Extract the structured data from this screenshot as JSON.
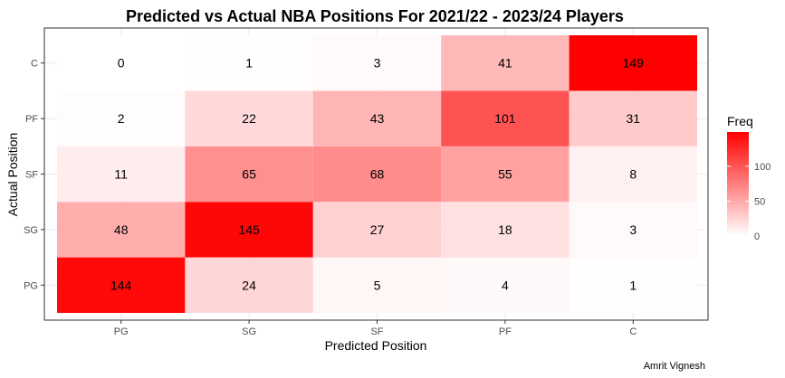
{
  "chart_data": {
    "type": "heatmap",
    "title": "Predicted vs Actual NBA Positions For 2021/22 - 2023/24 Players",
    "xlabel": "Predicted Position",
    "ylabel": "Actual Position",
    "x_categories": [
      "PG",
      "SG",
      "SF",
      "PF",
      "C"
    ],
    "y_categories": [
      "PG",
      "SG",
      "SF",
      "PF",
      "C"
    ],
    "values": [
      [
        144,
        24,
        5,
        4,
        1
      ],
      [
        48,
        145,
        27,
        18,
        3
      ],
      [
        11,
        65,
        68,
        55,
        8
      ],
      [
        2,
        22,
        43,
        101,
        31
      ],
      [
        0,
        1,
        3,
        41,
        149
      ]
    ],
    "color_scale": {
      "low": "#ffffff",
      "high": "#ff0000",
      "min": 0,
      "max": 149
    },
    "legend": {
      "title": "Freq",
      "ticks": [
        0,
        50,
        100
      ],
      "placement": "right"
    },
    "caption": "Amrit Vignesh",
    "grid": true
  }
}
